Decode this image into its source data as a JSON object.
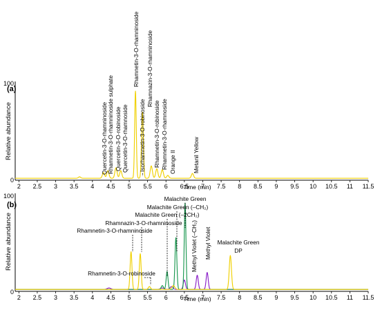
{
  "chart_data": [
    {
      "type": "line",
      "panel_label": "(a)",
      "xlabel": "Time (min)",
      "ylabel": "Relative abundance",
      "xlim": [
        1.9,
        11.5
      ],
      "ylim": [
        0,
        100
      ],
      "x_ticks": [
        "2",
        "2.5",
        "3",
        "3.5",
        "4",
        "4.5",
        "5",
        "5.5",
        "6",
        "6.5",
        "7",
        "7.5",
        "8",
        "8.5",
        "9",
        "9.5",
        "10",
        "10.5",
        "11",
        "11.5"
      ],
      "y_ticks": [
        "0",
        "100"
      ],
      "series": [
        {
          "color": "#f0d000",
          "peaks": [
            {
              "x": 3.65,
              "y": 1.5,
              "w": 0.03
            },
            {
              "x": 4.3,
              "y": 6,
              "w": 0.03
            },
            {
              "x": 4.42,
              "y": 8,
              "w": 0.03
            },
            {
              "x": 4.64,
              "y": 11,
              "w": 0.03
            },
            {
              "x": 4.77,
              "y": 8,
              "w": 0.03
            },
            {
              "x": 5.17,
              "y": 92,
              "w": 0.022
            },
            {
              "x": 5.36,
              "y": 70,
              "w": 0.025
            },
            {
              "x": 5.6,
              "y": 13,
              "w": 0.03
            },
            {
              "x": 5.75,
              "y": 10,
              "w": 0.03
            },
            {
              "x": 5.9,
              "y": 9,
              "w": 0.03
            },
            {
              "x": 6.05,
              "y": 3,
              "w": 0.03
            },
            {
              "x": 6.72,
              "y": 5,
              "w": 0.03
            }
          ]
        }
      ],
      "annotations": [
        {
          "text": "Quercetin-3-O-rhamninoside",
          "x": 4.3,
          "dashed": false
        },
        {
          "text": "Rhamnetin-3-O-rhamninoside sulphate",
          "x": 4.42,
          "dashed": false
        },
        {
          "text": "Quercetin-3-O-robinoside",
          "x": 4.64,
          "dashed": false
        },
        {
          "text": "Quercetin-3-O-rhamnoside",
          "x": 4.77,
          "dashed": false
        },
        {
          "text": "Rhamnetin-3-O-rhamninoside",
          "x": 5.17,
          "dashed": false
        },
        {
          "text": "Isorhamnetin-3-O-robinoside",
          "x": 5.25,
          "dashed": true
        },
        {
          "text": "Rhamnazin-3-O-rhamninoside",
          "x": 5.36,
          "dashed": false
        },
        {
          "text": "Rhamnetin-3-O-robinoside",
          "x": 5.6,
          "dashed": false
        },
        {
          "text": "Rhamnetin-3-O-rhamnoside",
          "x": 5.75,
          "dashed": false
        },
        {
          "text": "Orange II",
          "x": 6.05,
          "dashed": false
        },
        {
          "text": "Metanil Yellow",
          "x": 6.72,
          "dashed": false
        }
      ]
    },
    {
      "type": "line",
      "panel_label": "(b)",
      "xlabel": "Time (min)",
      "ylabel": "Relative abundance",
      "xlim": [
        1.9,
        11.5
      ],
      "ylim": [
        0,
        100
      ],
      "x_ticks": [
        "2",
        "2.5",
        "3",
        "3.5",
        "4",
        "4.5",
        "5",
        "5.5",
        "6",
        "6.5",
        "7",
        "7.5",
        "8",
        "8.5",
        "9",
        "9.5",
        "10",
        "10.5",
        "11",
        "11.5"
      ],
      "y_ticks": [
        "0",
        "100"
      ],
      "series": [
        {
          "color": "#8a1ec8",
          "peaks": [
            {
              "x": 4.45,
              "y": 1.5,
              "w": 0.05
            },
            {
              "x": 5.9,
              "y": 1.5,
              "w": 0.05
            },
            {
              "x": 6.15,
              "y": 3,
              "w": 0.04
            },
            {
              "x": 6.5,
              "y": 10,
              "w": 0.03
            },
            {
              "x": 6.85,
              "y": 15,
              "w": 0.028
            },
            {
              "x": 7.12,
              "y": 18,
              "w": 0.028
            }
          ]
        },
        {
          "color": "#1a9850",
          "peaks": [
            {
              "x": 5.9,
              "y": 4,
              "w": 0.03
            },
            {
              "x": 6.03,
              "y": 19,
              "w": 0.025
            },
            {
              "x": 6.27,
              "y": 55,
              "w": 0.025
            },
            {
              "x": 6.52,
              "y": 92,
              "w": 0.023
            }
          ]
        },
        {
          "color": "#f0d000",
          "peaks": [
            {
              "x": 5.05,
              "y": 40,
              "w": 0.025
            },
            {
              "x": 5.3,
              "y": 38,
              "w": 0.025
            },
            {
              "x": 5.55,
              "y": 3,
              "w": 0.03
            },
            {
              "x": 6.2,
              "y": 4,
              "w": 0.04
            },
            {
              "x": 7.75,
              "y": 36,
              "w": 0.03
            }
          ]
        }
      ],
      "annotations": [
        {
          "text": "Malachite Green",
          "x": 6.52
        },
        {
          "text": "Malachite Green (–CH₂)",
          "x": 6.27
        },
        {
          "text": "Malachite Green (–2CH₂)",
          "x": 6.03
        },
        {
          "text": "Rhamnazin-3-O-rhamninoside",
          "x": 5.3
        },
        {
          "text": "Rhamnetin-3-O-rhamninoside",
          "x": 5.05
        },
        {
          "text": "Rhamnetin-3-O-robinoside",
          "x": 5.55
        },
        {
          "text": "Methyl Violet (–CH₂)",
          "x": 6.85
        },
        {
          "text": "Methyl Violet",
          "x": 7.12
        },
        {
          "text": "Malachite Green",
          "x": 7.75
        },
        {
          "text": "DP",
          "x": 7.75
        }
      ]
    }
  ]
}
